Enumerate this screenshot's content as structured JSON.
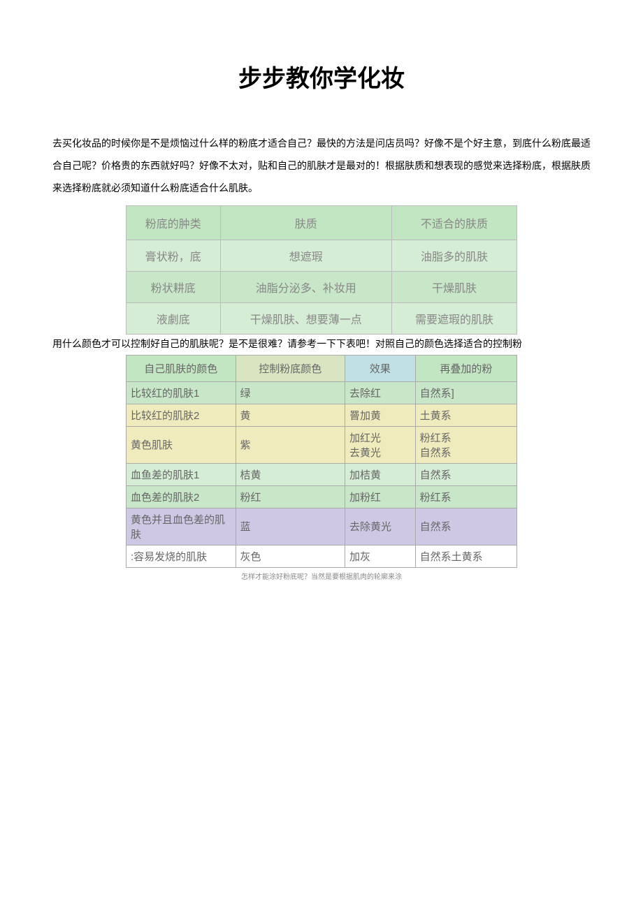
{
  "title": "步步教你学化妆",
  "intro": "去买化妆品的时候你是不是烦恼过什么样的粉底才适合自己？最快的方法是问店员吗？好像不是个好主意，到底什么粉底最适合自己呢？价格贵的东西就好吗？好像不太对，贴和自己的肌肤才是最对的！根据肤质和想表现的感觉来选择粉底，根据肤质来选择粉底就必须知道什么粉底适合什么肌肤。",
  "table1": {
    "header": [
      "粉底的肿类",
      "肤质",
      "不适合的肤质"
    ],
    "rows": [
      [
        "膏状粉，底",
        "想遮瑕",
        "油脂多的肌肤"
      ],
      [
        "粉状耕底",
        "油脂分泌多、补妆用",
        "干燥肌肤"
      ],
      [
        "液劇底",
        "干燥肌肤、想要薄一点",
        "需要遮瑕的肌肤"
      ]
    ]
  },
  "mid_text": "用什么颜色才可以控制好自己的肌肤呢？是不是很难？请参考一下下表吧！对照自己的颜色选择适合的控制粉",
  "table2": {
    "header": [
      "自己肌肤的颜色",
      "控制粉底颜色",
      "效果",
      "再叠加的粉"
    ],
    "rows": [
      {
        "class": "t2-row-green",
        "cells": [
          "比较红的肌肤1",
          "绿",
          "去除红",
          "自然系]"
        ]
      },
      {
        "class": "t2-row-yellow",
        "cells": [
          "比较红的肌肤2",
          "黄",
          "罾加黄",
          "土黄系"
        ]
      },
      {
        "class": "t2-row-yellow",
        "cells": [
          "黄色肌肤",
          "紫",
          "加红光\n去黄光",
          "粉红系\n自然系"
        ]
      },
      {
        "class": "t2-row-lightgreen",
        "cells": [
          "血鱼差的肌肤1",
          "桔黄",
          "加桔黄",
          "自然系"
        ]
      },
      {
        "class": "t2-row-green",
        "cells": [
          "血色差的肌肤2",
          "粉红",
          "加粉红",
          "粉红系"
        ]
      },
      {
        "class": "t2-row-purple",
        "cells": [
          "黄色并且血色差的肌肤",
          "蓝",
          "去除黄光",
          "自然系"
        ]
      },
      {
        "class": "t2-row-white",
        "cells": [
          ":容易发烧的肌肤",
          "灰色",
          "加灰",
          "自然系土黄系"
        ]
      }
    ]
  },
  "footer": "怎样才能涂好粉底呢？当然是要根据肌肉的轮廓来涂"
}
